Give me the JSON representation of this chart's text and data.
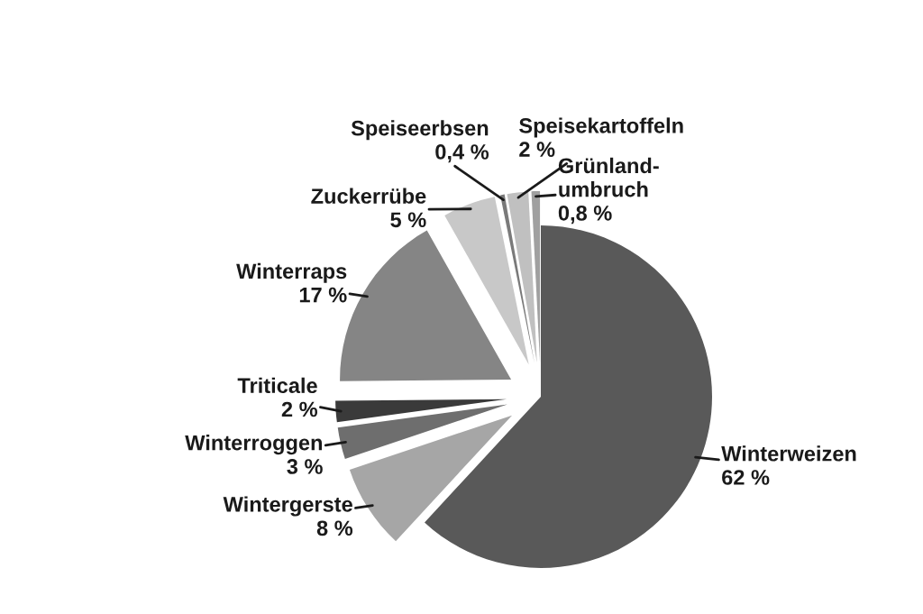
{
  "chart_data": {
    "type": "pie",
    "categories": [
      "Winterweizen",
      "Wintergerste",
      "Winterroggen",
      "Triticale",
      "Winterraps",
      "Zuckerrübe",
      "Speiseerbsen",
      "Speisekartoffeln",
      "Grünland-\numbruch"
    ],
    "values": [
      62,
      8,
      3,
      2,
      17,
      5,
      0.4,
      2,
      0.8
    ],
    "value_labels": [
      "62 %",
      "8 %",
      "3 %",
      "2 %",
      "17 %",
      "5 %",
      "0,4 %",
      "2 %",
      "0,8 %"
    ],
    "colors": [
      "#595959",
      "#a6a6a6",
      "#6e6e6e",
      "#3a3a3a",
      "#858585",
      "#c8c8c8",
      "#7a7a7a",
      "#c0c0c0",
      "#a0a0a0"
    ]
  }
}
